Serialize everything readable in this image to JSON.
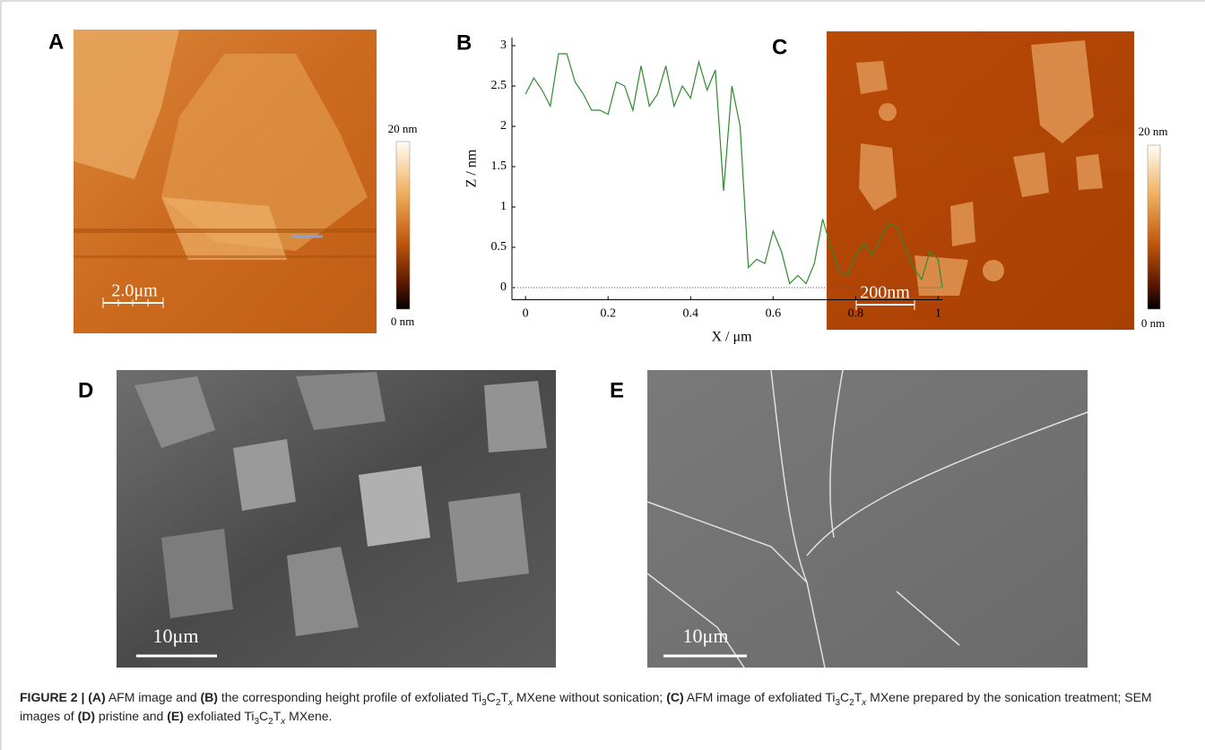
{
  "panel_labels": [
    "A",
    "B",
    "C",
    "D",
    "E"
  ],
  "afm_a": {
    "colorbar_max": "20 nm",
    "colorbar_min": "0 nm",
    "scale_bar": "2.0μm"
  },
  "afm_c": {
    "colorbar_max": "20 nm",
    "colorbar_min": "0 nm",
    "scale_bar": "200nm"
  },
  "sem_d": {
    "scale_bar": "10μm"
  },
  "sem_e": {
    "scale_bar": "10μm"
  },
  "chart_data": {
    "type": "line",
    "xlabel": "X / μm",
    "ylabel": "Z / nm",
    "color": "#2e8b2e",
    "x": [
      0,
      0.02,
      0.04,
      0.06,
      0.08,
      0.1,
      0.12,
      0.14,
      0.16,
      0.18,
      0.2,
      0.22,
      0.24,
      0.26,
      0.28,
      0.3,
      0.32,
      0.34,
      0.36,
      0.38,
      0.4,
      0.42,
      0.44,
      0.46,
      0.48,
      0.5,
      0.52,
      0.54,
      0.56,
      0.58,
      0.6,
      0.62,
      0.64,
      0.66,
      0.68,
      0.7,
      0.72,
      0.74,
      0.76,
      0.78,
      0.8,
      0.82,
      0.84,
      0.86,
      0.88,
      0.9,
      0.92,
      0.94,
      0.96,
      0.98,
      1.0,
      1.01
    ],
    "values": [
      2.4,
      2.6,
      2.45,
      2.25,
      2.9,
      2.9,
      2.55,
      2.4,
      2.2,
      2.2,
      2.15,
      2.55,
      2.5,
      2.2,
      2.75,
      2.25,
      2.4,
      2.75,
      2.25,
      2.5,
      2.35,
      2.8,
      2.45,
      2.7,
      1.2,
      2.5,
      2.0,
      0.25,
      0.35,
      0.3,
      0.7,
      0.45,
      0.05,
      0.15,
      0.05,
      0.3,
      0.85,
      0.5,
      0.2,
      0.15,
      0.4,
      0.55,
      0.4,
      0.6,
      0.8,
      0.75,
      0.5,
      0.25,
      0.1,
      0.45,
      0.35,
      0.0
    ],
    "xlim": [
      -0.033,
      1.01
    ],
    "ylim": [
      -0.15,
      3.1
    ],
    "xticks": [
      0,
      0.2,
      0.4,
      0.6,
      0.8,
      1
    ],
    "yticks": [
      0,
      0.5,
      1,
      1.5,
      2,
      2.5,
      3
    ],
    "zero_line": true
  },
  "caption": [
    {
      "text": "FIGURE 2 | ",
      "style": "bold"
    },
    {
      "text": "(A)",
      "style": "bold"
    },
    {
      "text": " AFM image and ",
      "style": "normal"
    },
    {
      "text": "(B)",
      "style": "bold"
    },
    {
      "text": " the corresponding height profile of exfoliated Ti",
      "style": "normal"
    },
    {
      "text": "3",
      "style": "sub"
    },
    {
      "text": "C",
      "style": "normal"
    },
    {
      "text": "2",
      "style": "sub"
    },
    {
      "text": "T",
      "style": "normal"
    },
    {
      "text": "x",
      "style": "sub-italic"
    },
    {
      "text": " MXene without sonication; ",
      "style": "normal"
    },
    {
      "text": "(C)",
      "style": "bold"
    },
    {
      "text": " AFM image of exfoliated Ti",
      "style": "normal"
    },
    {
      "text": "3",
      "style": "sub"
    },
    {
      "text": "C",
      "style": "normal"
    },
    {
      "text": "2",
      "style": "sub"
    },
    {
      "text": "T",
      "style": "normal"
    },
    {
      "text": "x",
      "style": "sub-italic"
    },
    {
      "text": " MXene prepared by the sonication treatment; SEM images of ",
      "style": "normal"
    },
    {
      "text": "(D)",
      "style": "bold"
    },
    {
      "text": " pristine and ",
      "style": "normal"
    },
    {
      "text": "(E)",
      "style": "bold"
    },
    {
      "text": " exfoliated Ti",
      "style": "normal"
    },
    {
      "text": "3",
      "style": "sub"
    },
    {
      "text": "C",
      "style": "normal"
    },
    {
      "text": "2",
      "style": "sub"
    },
    {
      "text": "T",
      "style": "normal"
    },
    {
      "text": "x",
      "style": "sub-italic"
    },
    {
      "text": " MXene.",
      "style": "normal"
    }
  ]
}
